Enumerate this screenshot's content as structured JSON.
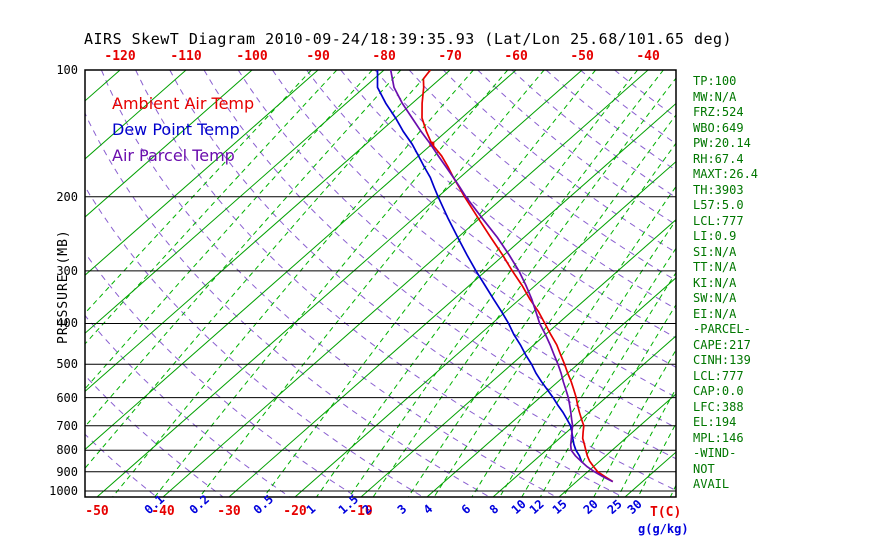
{
  "title": "AIRS SkewT Diagram 2010-09-24/18:39:35.93 (Lat/Lon 25.68/101.65 deg)",
  "legend": {
    "items": [
      {
        "label": "Ambient Air Temp",
        "color": "#e60000"
      },
      {
        "label": "Dew Point Temp",
        "color": "#0000cc"
      },
      {
        "label": "Air Parcel Temp",
        "color": "#6a0dad"
      }
    ]
  },
  "stats": {
    "items": [
      "TP:100",
      "MW:N/A",
      "FRZ:524",
      "WBO:649",
      "PW:20.14",
      "RH:67.4",
      "MAXT:26.4",
      "TH:3903",
      "L57:5.0",
      "LCL:777",
      "LI:0.9",
      "SI:N/A",
      "TT:N/A",
      "KI:N/A",
      "SW:N/A",
      "EI:N/A",
      "-PARCEL-",
      "CAPE:217",
      "CINH:139",
      "LCL:777",
      "CAP:0.0",
      "LFC:388",
      "EL:194",
      "MPL:146",
      "-WIND-",
      "NOT",
      "AVAIL"
    ]
  },
  "colors": {
    "title": "#000000",
    "axis_temp": "#e60000",
    "mixing_label": "#0000dd",
    "stats_text": "#007700",
    "isotherm": "#00a000",
    "mixing_line": "#00b000",
    "dry_adiabat": "#8a5fd0",
    "pressure_line": "#000000",
    "ambient": "#e60000",
    "dew": "#0000cc",
    "parcel": "#6a0dad"
  },
  "chart_data": {
    "type": "skewt-sounding",
    "pressure_axis": {
      "label": "PRESSURE (MB)",
      "unit": "MB",
      "scale": "log",
      "range": [
        100,
        1035
      ],
      "ticks": [
        100,
        200,
        300,
        400,
        500,
        600,
        700,
        800,
        900,
        1000
      ]
    },
    "temp_axis_top": {
      "unit": "C",
      "ticks": [
        -120,
        -110,
        -100,
        -90,
        -80,
        -70,
        -60,
        -50,
        -40
      ]
    },
    "temp_axis_bottom": {
      "label": "T(C)",
      "ticks": [
        -50,
        -40,
        -30,
        -20,
        -10
      ]
    },
    "mixing_axis": {
      "label": "g(g/kg)",
      "ticks": [
        0.1,
        0.2,
        0.5,
        1,
        1.5,
        2,
        3,
        4,
        6,
        8,
        10,
        12,
        15,
        20,
        25,
        30
      ]
    },
    "grid": {
      "isotherm_step": 10,
      "isotherm_range": [
        -170,
        50
      ],
      "dry_adiabats_theta_k": [
        230,
        240,
        250,
        260,
        270,
        280,
        290,
        300,
        310,
        320,
        330,
        340,
        350,
        360,
        370,
        380,
        390,
        400,
        410,
        420,
        430,
        440
      ],
      "mixing_ratio_lines_unlabeled": [
        0.001,
        0.002,
        0.005,
        0.01,
        0.02,
        0.05,
        40
      ]
    },
    "series": [
      {
        "name": "Ambient Air Temp",
        "color": "#e60000",
        "marker_point": [
          150,
          -60
        ],
        "points": [
          [
            950,
            25.5
          ],
          [
            925,
            23.5
          ],
          [
            900,
            21.5
          ],
          [
            875,
            20
          ],
          [
            850,
            18.5
          ],
          [
            825,
            17.2
          ],
          [
            800,
            16
          ],
          [
            775,
            14.8
          ],
          [
            750,
            13.5
          ],
          [
            725,
            12.5
          ],
          [
            700,
            11.5
          ],
          [
            675,
            10
          ],
          [
            650,
            8.5
          ],
          [
            625,
            7
          ],
          [
            600,
            5.5
          ],
          [
            575,
            3.8
          ],
          [
            550,
            2
          ],
          [
            525,
            0
          ],
          [
            500,
            -2
          ],
          [
            475,
            -4.2
          ],
          [
            450,
            -6.5
          ],
          [
            425,
            -9.2
          ],
          [
            400,
            -12
          ],
          [
            375,
            -15
          ],
          [
            350,
            -18.5
          ],
          [
            325,
            -22
          ],
          [
            300,
            -26
          ],
          [
            275,
            -30.2
          ],
          [
            250,
            -35
          ],
          [
            225,
            -40.2
          ],
          [
            200,
            -46
          ],
          [
            190,
            -48.4
          ],
          [
            180,
            -51
          ],
          [
            170,
            -53.6
          ],
          [
            160,
            -56.5
          ],
          [
            150,
            -60
          ],
          [
            140,
            -63
          ],
          [
            130,
            -66
          ],
          [
            120,
            -68.5
          ],
          [
            110,
            -71
          ],
          [
            105,
            -72.5
          ],
          [
            100,
            -73
          ]
        ]
      },
      {
        "name": "Dew Point Temp",
        "color": "#0000cc",
        "points": [
          [
            855,
            17.5
          ],
          [
            825,
            16
          ],
          [
            800,
            14.5
          ],
          [
            775,
            13.2
          ],
          [
            750,
            12
          ],
          [
            725,
            10.8
          ],
          [
            700,
            9.5
          ],
          [
            675,
            7.8
          ],
          [
            650,
            6
          ],
          [
            625,
            4
          ],
          [
            600,
            2
          ],
          [
            575,
            -0.2
          ],
          [
            550,
            -2.5
          ],
          [
            525,
            -4.8
          ],
          [
            500,
            -7
          ],
          [
            475,
            -9.5
          ],
          [
            450,
            -12
          ],
          [
            425,
            -14.8
          ],
          [
            400,
            -17.5
          ],
          [
            375,
            -20.6
          ],
          [
            350,
            -24
          ],
          [
            325,
            -27.6
          ],
          [
            300,
            -31.5
          ],
          [
            275,
            -35.6
          ],
          [
            250,
            -40
          ],
          [
            225,
            -44.8
          ],
          [
            200,
            -50
          ],
          [
            190,
            -52.2
          ],
          [
            180,
            -54.5
          ],
          [
            170,
            -57.2
          ],
          [
            160,
            -60
          ],
          [
            150,
            -63
          ],
          [
            140,
            -66.5
          ],
          [
            130,
            -70
          ],
          [
            120,
            -74
          ],
          [
            110,
            -78
          ],
          [
            100,
            -81
          ]
        ]
      },
      {
        "name": "Air Parcel Temp",
        "color": "#6a0dad",
        "points": [
          [
            950,
            25.5
          ],
          [
            925,
            23.2
          ],
          [
            900,
            21
          ],
          [
            875,
            19
          ],
          [
            850,
            17.2
          ],
          [
            825,
            15.4
          ],
          [
            800,
            13.8
          ],
          [
            777,
            12.8
          ],
          [
            750,
            11.8
          ],
          [
            725,
            10.8
          ],
          [
            700,
            9.8
          ],
          [
            675,
            8.5
          ],
          [
            650,
            7.2
          ],
          [
            625,
            5.8
          ],
          [
            600,
            4.3
          ],
          [
            575,
            2.6
          ],
          [
            550,
            0.8
          ],
          [
            525,
            -1
          ],
          [
            500,
            -3
          ],
          [
            475,
            -5.2
          ],
          [
            450,
            -7.5
          ],
          [
            425,
            -10
          ],
          [
            400,
            -12.8
          ],
          [
            375,
            -15.4
          ],
          [
            350,
            -18.2
          ],
          [
            325,
            -21.4
          ],
          [
            300,
            -25
          ],
          [
            275,
            -29.2
          ],
          [
            250,
            -34
          ],
          [
            225,
            -39.6
          ],
          [
            200,
            -45.8
          ],
          [
            190,
            -48.3
          ],
          [
            180,
            -51
          ],
          [
            170,
            -53.9
          ],
          [
            160,
            -57
          ],
          [
            150,
            -60.2
          ],
          [
            140,
            -63.8
          ],
          [
            130,
            -67.5
          ],
          [
            120,
            -71.5
          ],
          [
            110,
            -75.5
          ],
          [
            100,
            -79
          ]
        ]
      }
    ]
  }
}
